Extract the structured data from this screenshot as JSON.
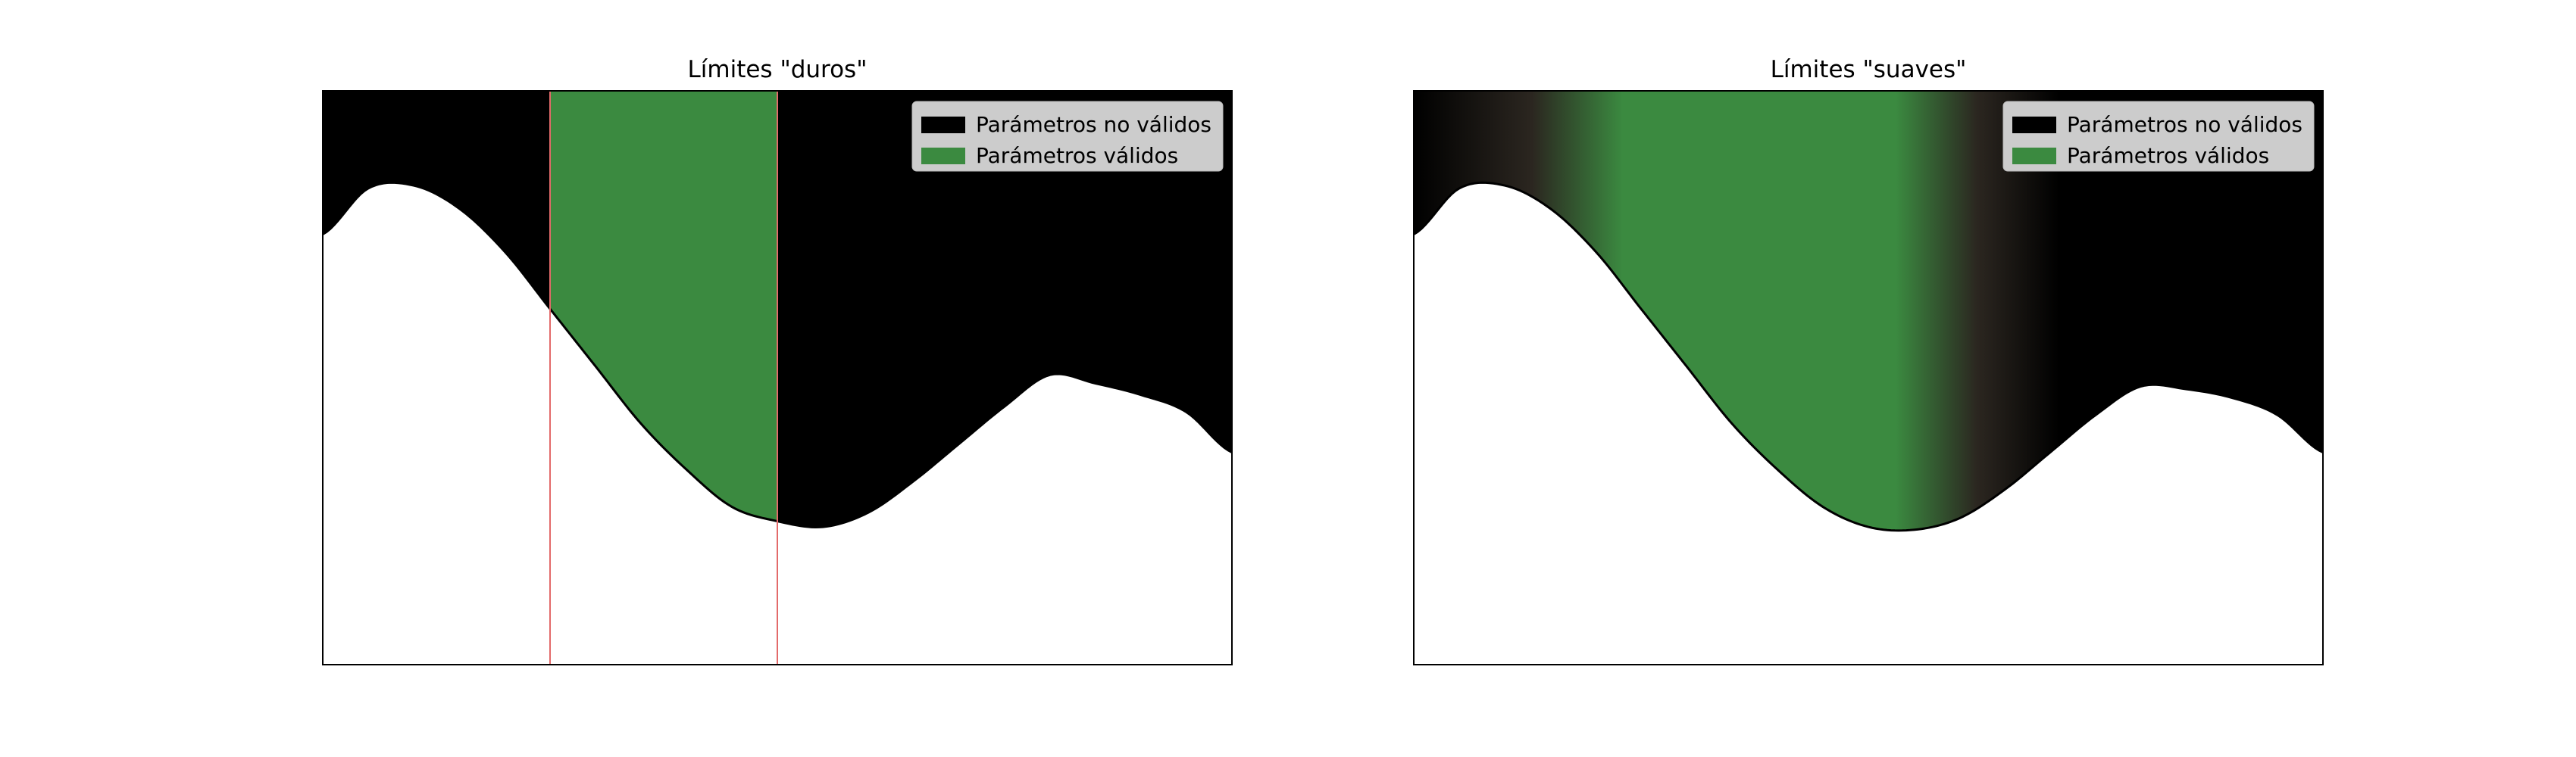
{
  "chart_data": [
    {
      "type": "area",
      "title": "Límites \"duros\"",
      "xlabel": "",
      "ylabel": "",
      "xlim": [
        0,
        10
      ],
      "ylim": [
        0,
        10
      ],
      "boundary": "hard",
      "valid_range": [
        2.5,
        5.0
      ],
      "curve": {
        "x": [
          0,
          0.5,
          1,
          1.5,
          2,
          2.5,
          3,
          3.5,
          4,
          4.5,
          5,
          5.5,
          6,
          6.5,
          7,
          7.5,
          8,
          8.5,
          9,
          9.5,
          10
        ],
        "y": [
          7.5,
          8.3,
          8.35,
          7.95,
          7.2,
          6.2,
          5.2,
          4.2,
          3.4,
          2.75,
          2.5,
          2.4,
          2.65,
          3.2,
          3.85,
          4.5,
          5.05,
          4.9,
          4.7,
          4.4,
          3.7
        ]
      },
      "series": [
        {
          "name": "Parámetros no válidos",
          "color": "#000000"
        },
        {
          "name": "Parámetros válidos",
          "color": "#3b8a40"
        }
      ],
      "grid": false,
      "legend_position": "upper right"
    },
    {
      "type": "area",
      "title": "Límites \"suaves\"",
      "xlabel": "",
      "ylabel": "",
      "xlim": [
        0,
        10
      ],
      "ylim": [
        0,
        10
      ],
      "boundary": "soft",
      "valid_range": [
        2.5,
        5.0
      ],
      "curve": {
        "x": [
          0,
          0.5,
          1,
          1.5,
          2,
          2.5,
          3,
          3.5,
          4,
          4.5,
          5,
          5.5,
          6,
          6.5,
          7,
          7.5,
          8,
          8.5,
          9,
          9.5,
          10
        ],
        "y": [
          7.5,
          8.3,
          8.35,
          7.95,
          7.2,
          6.2,
          5.2,
          4.2,
          3.4,
          2.75,
          2.4,
          2.35,
          2.55,
          3.05,
          3.7,
          4.35,
          4.85,
          4.8,
          4.65,
          4.35,
          3.7
        ]
      },
      "series": [
        {
          "name": "Parámetros no válidos",
          "color": "#000000"
        },
        {
          "name": "Parámetros válidos",
          "color": "#3b8a40"
        }
      ],
      "grid": false,
      "legend_position": "upper right"
    }
  ],
  "colors": {
    "invalid": "#000000",
    "valid": "#3b8a40",
    "soft_transition": "#2b2620",
    "boundary_line": "#e36a6a",
    "legend_background": "#cccccc"
  }
}
